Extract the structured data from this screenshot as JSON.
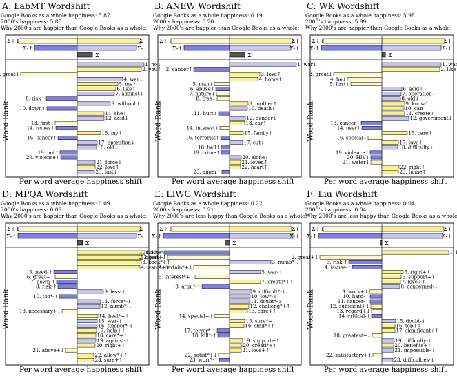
{
  "colors": {
    "pos": "#fbf28e",
    "neg": "#7f7fe6",
    "pos_light": "#fdf9c8",
    "neg_light": "#c6c6f0",
    "sum": "#555555",
    "frame": "#000000"
  },
  "common": {
    "xlabel": "Per word average happiness shift",
    "ylabel": "Word Rank"
  },
  "chart_data": [
    {
      "id": "A",
      "type": "bar",
      "title": "A: LabMT Wordshift",
      "subtitle1": "Google Books as a whole happiness: 5.87",
      "subtitle2": "2000's happiness: 5.88",
      "subtitle3": "Why 2000's are happier than Google Books as a whole:",
      "summary": {
        "pos_top": 0.93,
        "neg_left": -0.62,
        "pos_right": 0.86,
        "neg_bot": -0.82,
        "total": 0.17
      },
      "words": [
        {
          "r": 1,
          "w": "no",
          "s": "↓",
          "v": 0.97
        },
        {
          "r": 2,
          "w": "you",
          "s": "↑",
          "v": 0.93
        },
        {
          "r": 3,
          "w": "great",
          "s": "↓",
          "v": -0.82
        },
        {
          "r": 4,
          "w": "war",
          "s": "↓",
          "v": 0.66
        },
        {
          "r": 5,
          "w": "me",
          "s": "↑",
          "v": 0.59
        },
        {
          "r": 6,
          "w": "like",
          "s": "↑",
          "v": 0.56
        },
        {
          "r": 7,
          "w": "against",
          "s": "↓",
          "v": 0.54
        },
        {
          "r": 8,
          "w": "risk",
          "s": "↑",
          "v": -0.45
        },
        {
          "r": 9,
          "w": "without",
          "s": "↓",
          "v": 0.48
        },
        {
          "r": 10,
          "w": "down",
          "s": "↑",
          "v": -0.44
        },
        {
          "r": 11,
          "w": "she",
          "s": "↑",
          "v": 0.39
        },
        {
          "r": 12,
          "w": "acid",
          "s": "↓",
          "v": 0.39
        },
        {
          "r": 13,
          "w": "first",
          "s": "↓",
          "v": -0.32
        },
        {
          "r": 14,
          "w": "issues",
          "s": "↑",
          "v": -0.31
        },
        {
          "r": 15,
          "w": "my",
          "s": "↑",
          "v": 0.34
        },
        {
          "r": 16,
          "w": "cancer",
          "s": "↑",
          "v": -0.28
        },
        {
          "r": 17,
          "w": "operation",
          "s": "↓",
          "v": 0.29
        },
        {
          "r": 18,
          "w": "old",
          "s": "↓",
          "v": 0.28
        },
        {
          "r": 19,
          "w": "not",
          "s": "↑",
          "v": -0.25
        },
        {
          "r": 20,
          "w": "violence",
          "s": "↑",
          "v": -0.24
        },
        {
          "r": 21,
          "w": "force",
          "s": "↓",
          "v": 0.26
        },
        {
          "r": 22,
          "w": "love",
          "s": "↑",
          "v": 0.26
        },
        {
          "r": 23,
          "w": "last",
          "s": "↓",
          "v": 0.25
        }
      ]
    },
    {
      "id": "B",
      "type": "bar",
      "title": "B: ANEW Wordshift",
      "subtitle1": "Google Books as a whole happiness: 6.19",
      "subtitle2": "2000's happiness: 6.20",
      "subtitle3": "Why 2000's are happier than Google Books as a whole:",
      "summary": {
        "pos_top": 0.92,
        "neg_left": -0.66,
        "pos_right": 0.88,
        "neg_bot": -0.84,
        "total": 0.17
      },
      "words": [
        {
          "r": 1,
          "w": "war",
          "s": "↓",
          "v": 0.97
        },
        {
          "r": 2,
          "w": "cancer",
          "s": "↑",
          "v": -0.52
        },
        {
          "r": 3,
          "w": "love",
          "s": "↑",
          "v": 0.44
        },
        {
          "r": 4,
          "w": "home",
          "s": "↑",
          "v": 0.41
        },
        {
          "r": 5,
          "w": "man",
          "s": "↓",
          "v": -0.22
        },
        {
          "r": 6,
          "w": "abuse",
          "s": "↑",
          "v": -0.2
        },
        {
          "r": 7,
          "w": "nature",
          "s": "↓",
          "v": -0.19
        },
        {
          "r": 8,
          "w": "free",
          "s": "↓",
          "v": -0.18
        },
        {
          "r": 9,
          "w": "mother",
          "s": "↑",
          "v": 0.27
        },
        {
          "r": 10,
          "w": "death",
          "s": "↓",
          "v": 0.26
        },
        {
          "r": 11,
          "w": "hurt",
          "s": "↑",
          "v": -0.16
        },
        {
          "r": 12,
          "w": "danger",
          "s": "↓",
          "v": 0.23
        },
        {
          "r": 13,
          "w": "car",
          "s": "↑",
          "v": 0.22
        },
        {
          "r": 14,
          "w": "interest",
          "s": "↓",
          "v": -0.14
        },
        {
          "r": 15,
          "w": "family",
          "s": "↑",
          "v": 0.2
        },
        {
          "r": 16,
          "w": "terrorist",
          "s": "↑",
          "v": -0.13
        },
        {
          "r": 17,
          "w": "cut",
          "s": "↓",
          "v": 0.19
        },
        {
          "r": 18,
          "w": "hell",
          "s": "↑",
          "v": -0.12
        },
        {
          "r": 19,
          "w": "crime",
          "s": "↑",
          "v": -0.12
        },
        {
          "r": 20,
          "w": "alone",
          "s": "↓",
          "v": 0.17
        },
        {
          "r": 21,
          "w": "loved",
          "s": "↑",
          "v": 0.16
        },
        {
          "r": 22,
          "w": "heart",
          "s": "↑",
          "v": 0.16
        },
        {
          "r": 23,
          "w": "anger",
          "s": "↑",
          "v": -0.11
        }
      ]
    },
    {
      "id": "C",
      "type": "bar",
      "title": "C: WK Wordshift",
      "subtitle1": "Google Books as a whole happiness: 5.98",
      "subtitle2": "2000's happiness: 5.99",
      "subtitle3": "Why 2000's are happier than Google Books as a whole:",
      "summary": {
        "pos_top": 0.91,
        "neg_left": -0.88,
        "pos_right": 0.86,
        "neg_bot": -0.86,
        "total": 0.04
      },
      "words": [
        {
          "r": 1,
          "w": "war",
          "s": "↓",
          "v": 0.86
        },
        {
          "r": 2,
          "w": "like",
          "s": "↑",
          "v": 0.84
        },
        {
          "r": 3,
          "w": "great",
          "s": "↓",
          "v": -0.7
        },
        {
          "r": 4,
          "w": "be",
          "s": "↓",
          "v": -0.5
        },
        {
          "r": 5,
          "w": "first",
          "s": "↓",
          "v": -0.45
        },
        {
          "r": 6,
          "w": "acid",
          "s": "↓",
          "v": 0.29
        },
        {
          "r": 7,
          "w": "operation",
          "s": "↓",
          "v": 0.28
        },
        {
          "r": 8,
          "w": "old",
          "s": "↓",
          "v": 0.27
        },
        {
          "r": 9,
          "w": "know",
          "s": "↑",
          "v": 0.33
        },
        {
          "r": 10,
          "w": "can",
          "s": "↑",
          "v": 0.32
        },
        {
          "r": 11,
          "w": "create",
          "s": "↑",
          "v": 0.33
        },
        {
          "r": 12,
          "w": "government",
          "s": "↓",
          "v": 0.39
        },
        {
          "r": 13,
          "w": "cancer",
          "s": "↑",
          "v": -0.3
        },
        {
          "r": 14,
          "w": "user",
          "s": "↑",
          "v": -0.29
        },
        {
          "r": 15,
          "w": "care",
          "s": "↑",
          "v": 0.37
        },
        {
          "r": 16,
          "w": "special",
          "s": "↓",
          "v": -0.2
        },
        {
          "r": 17,
          "w": "love",
          "s": "↑",
          "v": 0.24
        },
        {
          "r": 18,
          "w": "difficulty",
          "s": "↓",
          "v": 0.23
        },
        {
          "r": 19,
          "w": "violence",
          "s": "↑",
          "v": -0.17
        },
        {
          "r": 20,
          "w": "HIV",
          "s": "↑",
          "v": -0.16
        },
        {
          "r": 21,
          "w": "water",
          "s": "↓",
          "v": -0.16
        },
        {
          "r": 22,
          "w": "right",
          "s": "↑",
          "v": 0.25
        },
        {
          "r": 23,
          "w": "home",
          "s": "↑",
          "v": 0.24
        }
      ]
    },
    {
      "id": "D",
      "type": "bar",
      "title": "D: MPQA Wordshift",
      "subtitle1": "Google Books as a whole happiness: 0.09",
      "subtitle2": "2000's happiness: 0.09",
      "subtitle3": "Why 2000's are happier than Google Books as a whole:",
      "summary": {
        "pos_top": 0.93,
        "neg_left": -0.86,
        "pos_right": 0.86,
        "neg_bot": -0.86,
        "total": 0.06
      },
      "words": [
        {
          "r": 1,
          "w": "like",
          "s": "*+↑",
          "v": 0.98
        },
        {
          "r": 2,
          "w": "just",
          "s": "+↑",
          "v": 0.95
        },
        {
          "r": 3,
          "w": "back",
          "s": "*+↑",
          "v": 0.93
        },
        {
          "r": 4,
          "w": "want",
          "s": "*+↑",
          "v": 0.91
        },
        {
          "r": 5,
          "w": "need",
          "s": "-↑",
          "v": -0.34
        },
        {
          "r": 6,
          "w": "great",
          "s": "+↓",
          "v": -0.32
        },
        {
          "r": 7,
          "w": "down",
          "s": "-↑",
          "v": -0.3
        },
        {
          "r": 8,
          "w": "risk",
          "s": "-↑",
          "v": -0.28
        },
        {
          "r": 9,
          "w": "less",
          "s": "-↓",
          "v": 0.38
        },
        {
          "r": 10,
          "w": "too",
          "s": "*-↑",
          "v": -0.26
        },
        {
          "r": 11,
          "w": "force",
          "s": "*-↓",
          "v": 0.34
        },
        {
          "r": 12,
          "w": "numb",
          "s": "*-↓",
          "v": 0.33
        },
        {
          "r": 13,
          "w": "necessary",
          "s": "+↓",
          "v": -0.22
        },
        {
          "r": 14,
          "w": "heal",
          "s": "*+↑",
          "v": 0.3
        },
        {
          "r": 15,
          "w": "war",
          "s": "-↓",
          "v": 0.29
        },
        {
          "r": 16,
          "w": "temper",
          "s": "*-↓",
          "v": 0.29
        },
        {
          "r": 17,
          "w": "help",
          "s": "+↑",
          "v": 0.28
        },
        {
          "r": 18,
          "w": "care",
          "s": "*+↑",
          "v": 0.27
        },
        {
          "r": 19,
          "w": "against",
          "s": "-↓",
          "v": 0.27
        },
        {
          "r": 20,
          "w": "right",
          "s": "+↑",
          "v": 0.26
        },
        {
          "r": 21,
          "w": "above",
          "s": "+↓",
          "v": -0.17
        },
        {
          "r": 22,
          "w": "allow",
          "s": "*+↑",
          "v": 0.24
        },
        {
          "r": 23,
          "w": "sure",
          "s": "+↑",
          "v": 0.24
        }
      ]
    },
    {
      "id": "E",
      "type": "bar",
      "title": "E: LIWC Wordshift",
      "subtitle1": "Google Books as a whole happiness: 0.22",
      "subtitle2": "2000's happiness: 0.21",
      "subtitle3": "Why 2000's are less happy than Google Books as a whole:",
      "summary": {
        "pos_top": 0.9,
        "neg_left": -0.96,
        "pos_right": 0.92,
        "neg_bot": -0.9,
        "total": -0.09
      },
      "words": [
        {
          "r": 1,
          "w": "risk",
          "s": "*-↑",
          "v": -0.95
        },
        {
          "r": 2,
          "w": "great",
          "s": "+↓",
          "v": -0.9
        },
        {
          "r": 3,
          "w": "numb",
          "s": "*-↓",
          "v": 0.6
        },
        {
          "r": 4,
          "w": "certain",
          "s": "*+↓",
          "v": -0.52
        },
        {
          "r": 5,
          "w": "war",
          "s": "-↓",
          "v": 0.45
        },
        {
          "r": 6,
          "w": "interest",
          "s": "*+↓",
          "v": -0.5
        },
        {
          "r": 7,
          "w": "create",
          "s": "*+↑",
          "v": 0.45
        },
        {
          "r": 8,
          "w": "argu",
          "s": "*-↑",
          "v": -0.4
        },
        {
          "r": 9,
          "w": "difficult",
          "s": "*-↓",
          "v": 0.32
        },
        {
          "r": 10,
          "w": "low",
          "s": "*-↓",
          "v": 0.3
        },
        {
          "r": 11,
          "w": "doubt",
          "s": "*-↓",
          "v": 0.29
        },
        {
          "r": 12,
          "w": "challeng",
          "s": "*+↑",
          "v": 0.28
        },
        {
          "r": 13,
          "w": "care",
          "s": "+↑",
          "v": 0.26
        },
        {
          "r": 14,
          "w": "special",
          "s": "+↓",
          "v": -0.22
        },
        {
          "r": 15,
          "w": "sure",
          "s": "*+↑",
          "v": 0.22
        },
        {
          "r": 16,
          "w": "smil",
          "s": "*+↑",
          "v": 0.21
        },
        {
          "r": 17,
          "w": "terror",
          "s": "*-↑",
          "v": -0.18
        },
        {
          "r": 18,
          "w": "kill",
          "s": "*-↑",
          "v": -0.17
        },
        {
          "r": 19,
          "w": "support",
          "s": "+↑",
          "v": 0.19
        },
        {
          "r": 20,
          "w": "creati",
          "s": "*+↑",
          "v": 0.18
        },
        {
          "r": 21,
          "w": "love",
          "s": "+↑",
          "v": 0.17
        },
        {
          "r": 22,
          "w": "satisf",
          "s": "*+↓",
          "v": -0.16
        },
        {
          "r": 23,
          "w": "worr",
          "s": "*-↑",
          "v": -0.15
        }
      ]
    },
    {
      "id": "F",
      "type": "bar",
      "title": "F: Liu Wordshift",
      "subtitle1": "Google Books as a whole happiness: 0.04",
      "subtitle2": "2000's happiness: 0.04",
      "subtitle3": "Why 2000's are less happy than Google Books as a whole:",
      "summary": {
        "pos_top": 0.9,
        "neg_left": -0.92,
        "pos_right": 0.88,
        "neg_bot": -0.9,
        "total": -0.04
      },
      "words": [
        {
          "r": 1,
          "w": "like",
          "s": "+↑",
          "v": 0.97
        },
        {
          "r": 2,
          "w": "great",
          "s": "+↓",
          "v": -0.9
        },
        {
          "r": 3,
          "w": "risk",
          "s": "-↑",
          "v": -0.48
        },
        {
          "r": 4,
          "w": "issues",
          "s": "-↑",
          "v": -0.43
        },
        {
          "r": 5,
          "w": "right",
          "s": "+↑",
          "v": 0.31
        },
        {
          "r": 6,
          "w": "support",
          "s": "+↑",
          "v": 0.28
        },
        {
          "r": 7,
          "w": "love",
          "s": "+↑",
          "v": 0.27
        },
        {
          "r": 8,
          "w": "concerned",
          "s": "-↓",
          "v": 0.26
        },
        {
          "r": 9,
          "w": "work",
          "s": "+↓",
          "v": -0.18
        },
        {
          "r": 10,
          "w": "hard",
          "s": "-↑",
          "v": -0.17
        },
        {
          "r": 11,
          "w": "cancer",
          "s": "-↑",
          "v": -0.17
        },
        {
          "r": 12,
          "w": "sufficient",
          "s": "+↓",
          "v": -0.16
        },
        {
          "r": 13,
          "w": "regard",
          "s": "+↓",
          "v": -0.15
        },
        {
          "r": 14,
          "w": "critical",
          "s": "-↑",
          "v": -0.15
        },
        {
          "r": 15,
          "w": "doubt",
          "s": "-↓",
          "v": 0.2
        },
        {
          "r": 16,
          "w": "top",
          "s": "+↑",
          "v": 0.19
        },
        {
          "r": 17,
          "w": "significant",
          "s": "+↑",
          "v": 0.19
        },
        {
          "r": 18,
          "w": "greatest",
          "s": "+↓",
          "v": -0.14
        },
        {
          "r": 19,
          "w": "difficulty",
          "s": "-↓",
          "v": 0.18
        },
        {
          "r": 20,
          "w": "benefits",
          "s": "+↑",
          "v": 0.17
        },
        {
          "r": 21,
          "w": "impossible",
          "s": "-↓",
          "v": 0.17
        },
        {
          "r": 22,
          "w": "satisfactory",
          "s": "+↓",
          "v": -0.13
        },
        {
          "r": 23,
          "w": "difficulties",
          "s": "-↓",
          "v": 0.16
        }
      ]
    }
  ]
}
